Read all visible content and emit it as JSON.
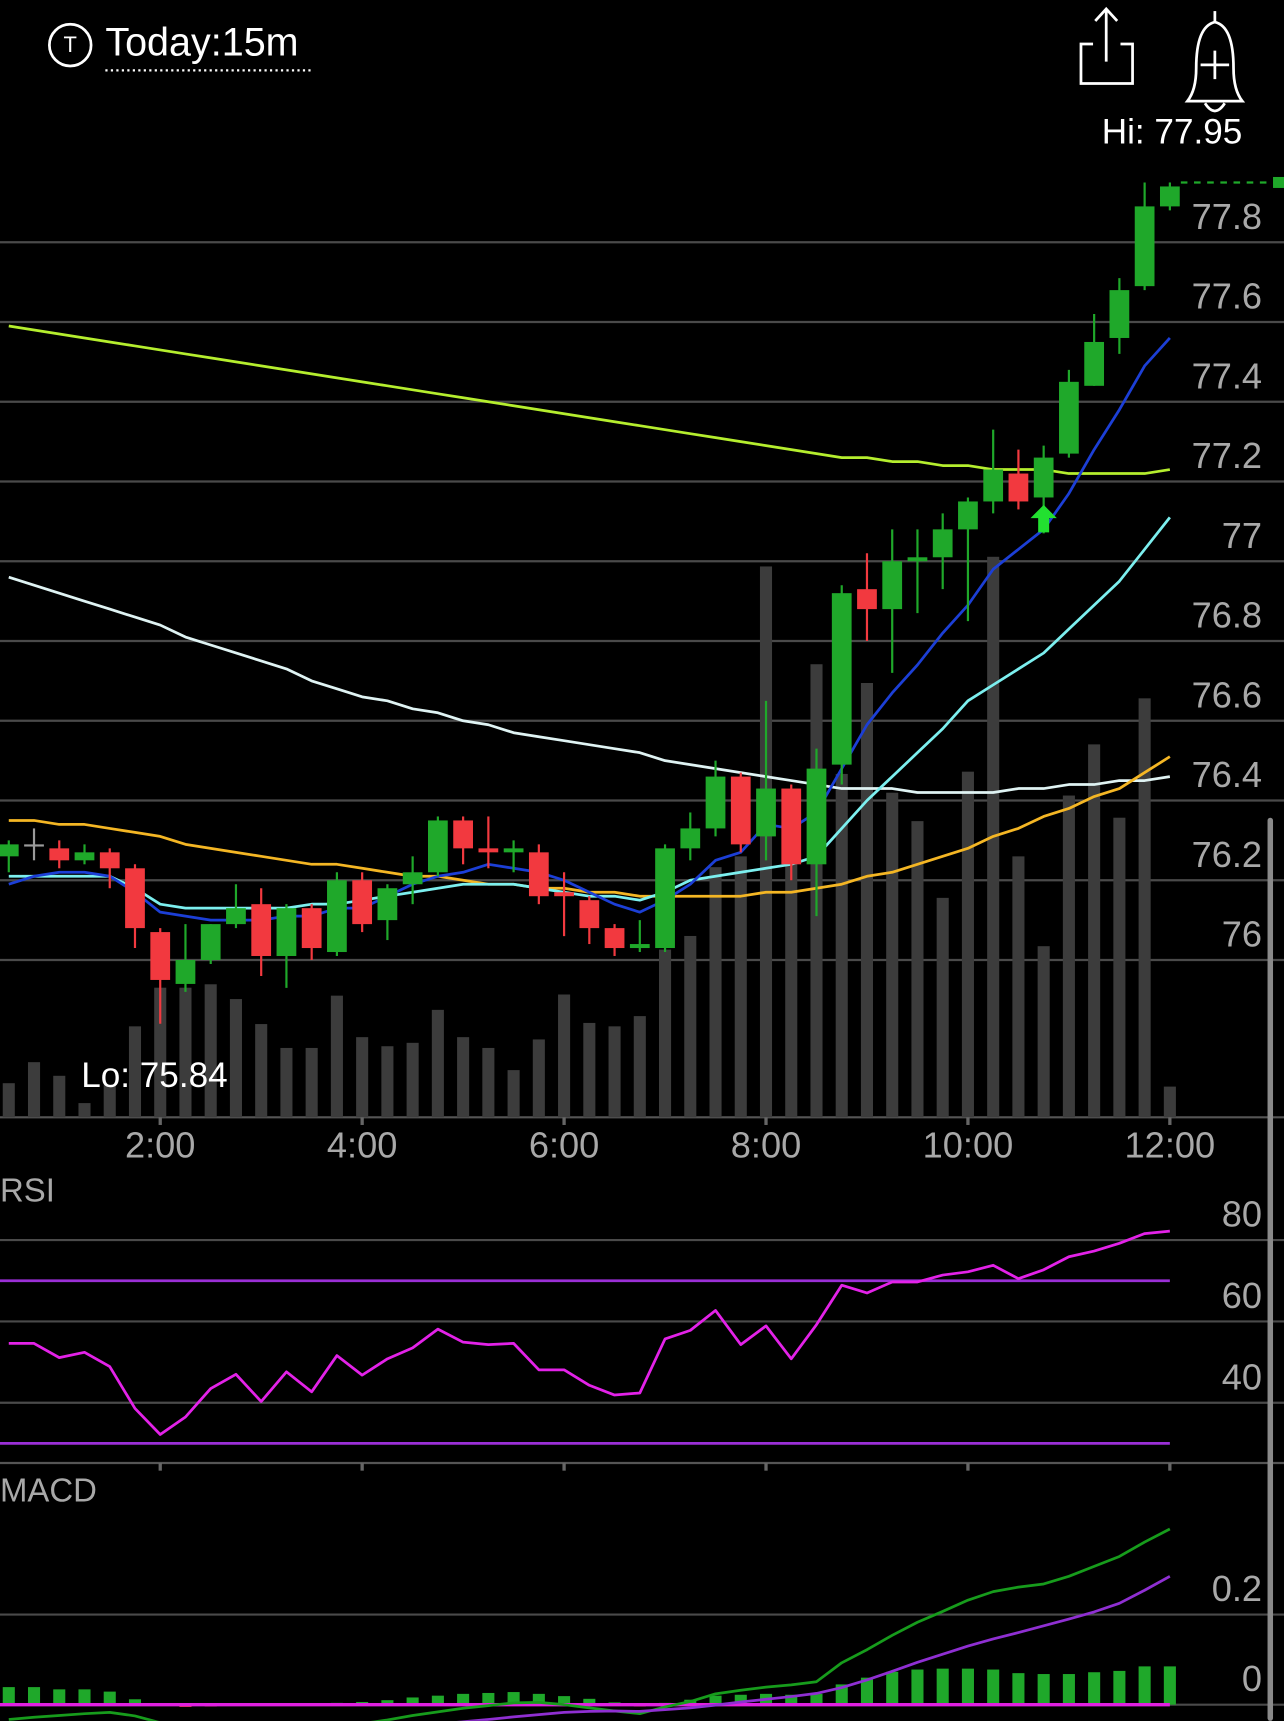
{
  "header": {
    "icon": "T",
    "title": "Today:15m"
  },
  "chart_data": [
    {
      "type": "candlestick",
      "categories": [
        null,
        null,
        null,
        null,
        null,
        null,
        "2:00",
        null,
        null,
        null,
        null,
        null,
        null,
        null,
        "4:00",
        null,
        null,
        null,
        null,
        null,
        null,
        null,
        "6:00",
        null,
        null,
        null,
        null,
        null,
        null,
        null,
        "8:00",
        null,
        null,
        null,
        null,
        null,
        null,
        null,
        "10:00",
        null,
        null,
        null,
        null,
        null,
        null,
        null,
        "12:00"
      ],
      "open": [
        76.26,
        76.29,
        76.28,
        76.25,
        76.27,
        76.23,
        76.07,
        75.94,
        76.0,
        76.09,
        76.14,
        76.01,
        76.13,
        76.02,
        76.2,
        76.1,
        76.19,
        76.22,
        76.35,
        76.28,
        76.27,
        76.27,
        76.17,
        76.15,
        76.08,
        76.03,
        76.03,
        76.28,
        76.33,
        76.46,
        76.31,
        76.43,
        76.24,
        76.49,
        76.93,
        76.88,
        77.0,
        77.01,
        77.08,
        77.15,
        77.22,
        77.16,
        77.27,
        77.44,
        77.56,
        77.69,
        77.89
      ],
      "high": [
        76.3,
        76.33,
        76.3,
        76.29,
        76.28,
        76.24,
        76.08,
        76.09,
        76.09,
        76.19,
        76.18,
        76.14,
        76.14,
        76.22,
        76.22,
        76.19,
        76.26,
        76.36,
        76.36,
        76.36,
        76.3,
        76.29,
        76.22,
        76.16,
        76.09,
        76.1,
        76.29,
        76.37,
        76.5,
        76.47,
        76.65,
        76.44,
        76.53,
        76.94,
        77.02,
        77.08,
        77.08,
        77.12,
        77.16,
        77.33,
        77.28,
        77.29,
        77.48,
        77.62,
        77.71,
        77.95,
        77.95
      ],
      "low": [
        76.22,
        76.25,
        76.23,
        76.24,
        76.18,
        76.03,
        75.84,
        75.92,
        75.99,
        76.08,
        75.96,
        75.93,
        76.0,
        76.01,
        76.07,
        76.05,
        76.14,
        76.21,
        76.24,
        76.23,
        76.22,
        76.14,
        76.06,
        76.04,
        76.01,
        76.02,
        76.02,
        76.25,
        76.31,
        76.27,
        76.25,
        76.2,
        76.11,
        76.44,
        76.8,
        76.72,
        76.87,
        76.93,
        76.85,
        77.12,
        77.13,
        77.07,
        77.26,
        77.44,
        77.52,
        77.68,
        77.88
      ],
      "close": [
        76.29,
        76.29,
        76.25,
        76.27,
        76.23,
        76.08,
        75.95,
        76.0,
        76.09,
        76.13,
        76.01,
        76.13,
        76.03,
        76.2,
        76.09,
        76.18,
        76.22,
        76.35,
        76.28,
        76.27,
        76.28,
        76.16,
        76.16,
        76.08,
        76.03,
        76.04,
        76.28,
        76.33,
        76.46,
        76.29,
        76.43,
        76.24,
        76.48,
        76.92,
        76.88,
        77.0,
        77.01,
        77.08,
        77.15,
        77.23,
        77.15,
        77.26,
        77.45,
        77.55,
        77.68,
        77.89,
        77.94
      ],
      "up_color": "#1fa82a",
      "down_color": "#f2393f",
      "doji_color": "#9a9a9a",
      "volume": [
        60,
        97,
        73,
        25,
        58,
        160,
        228,
        228,
        234,
        208,
        164,
        122,
        122,
        214,
        141,
        125,
        131,
        189,
        141,
        122,
        83,
        137,
        216,
        166,
        160,
        178,
        295,
        319,
        440,
        459,
        969,
        575,
        797,
        604,
        764,
        571,
        521,
        386,
        608,
        986,
        459,
        301,
        566,
        656,
        527,
        737,
        54
      ],
      "volume_color": "#3c3c3c",
      "vlim": [
        0,
        1000
      ],
      "series": [
        {
          "color": "#b5ee2e",
          "values": [
            77.59,
            77.58,
            77.57,
            77.56,
            77.55,
            77.54,
            77.53,
            77.52,
            77.51,
            77.5,
            77.49,
            77.48,
            77.47,
            77.46,
            77.45,
            77.44,
            77.43,
            77.42,
            77.41,
            77.4,
            77.39,
            77.38,
            77.37,
            77.36,
            77.35,
            77.34,
            77.33,
            77.32,
            77.31,
            77.3,
            77.29,
            77.28,
            77.27,
            77.26,
            77.26,
            77.25,
            77.25,
            77.24,
            77.24,
            77.23,
            77.23,
            77.23,
            77.22,
            77.22,
            77.22,
            77.22,
            77.23
          ]
        },
        {
          "color": "#dff3f3",
          "values": [
            76.96,
            76.94,
            76.92,
            76.9,
            76.88,
            76.86,
            76.84,
            76.81,
            76.79,
            76.77,
            76.75,
            76.73,
            76.7,
            76.68,
            76.66,
            76.65,
            76.63,
            76.62,
            76.6,
            76.59,
            76.57,
            76.56,
            76.55,
            76.54,
            76.53,
            76.52,
            76.5,
            76.49,
            76.48,
            76.47,
            76.46,
            76.45,
            76.44,
            76.43,
            76.43,
            76.43,
            76.42,
            76.42,
            76.42,
            76.42,
            76.43,
            76.43,
            76.44,
            76.44,
            76.45,
            76.45,
            76.46
          ]
        },
        {
          "color": "#f4b624",
          "values": [
            76.35,
            76.35,
            76.34,
            76.34,
            76.33,
            76.32,
            76.31,
            76.29,
            76.28,
            76.27,
            76.26,
            76.25,
            76.24,
            76.24,
            76.23,
            76.22,
            76.21,
            76.21,
            76.2,
            76.19,
            76.19,
            76.18,
            76.18,
            76.17,
            76.17,
            76.16,
            76.16,
            76.16,
            76.16,
            76.16,
            76.17,
            76.17,
            76.18,
            76.19,
            76.21,
            76.22,
            76.24,
            76.26,
            76.28,
            76.31,
            76.33,
            76.36,
            76.38,
            76.41,
            76.43,
            76.47,
            76.51
          ]
        },
        {
          "color": "#7cefef",
          "values": [
            76.21,
            76.21,
            76.21,
            76.21,
            76.21,
            76.18,
            76.14,
            76.13,
            76.13,
            76.13,
            76.13,
            76.13,
            76.14,
            76.14,
            76.15,
            76.16,
            76.17,
            76.18,
            76.19,
            76.19,
            76.19,
            76.18,
            76.17,
            76.16,
            76.16,
            76.15,
            76.17,
            76.2,
            76.21,
            76.22,
            76.23,
            76.24,
            76.26,
            76.33,
            76.4,
            76.46,
            76.52,
            76.58,
            76.65,
            76.69,
            76.73,
            76.77,
            76.83,
            76.89,
            76.95,
            77.03,
            77.11
          ]
        },
        {
          "color": "#1c3fd6",
          "values": [
            76.19,
            76.21,
            76.22,
            76.22,
            76.21,
            76.17,
            76.12,
            76.11,
            76.1,
            76.1,
            76.1,
            76.11,
            76.11,
            76.13,
            76.13,
            76.16,
            76.19,
            76.21,
            76.22,
            76.24,
            76.23,
            76.22,
            76.2,
            76.17,
            76.14,
            76.12,
            76.15,
            76.19,
            76.25,
            76.27,
            76.34,
            76.33,
            76.37,
            76.48,
            76.59,
            76.67,
            76.74,
            76.82,
            76.89,
            76.98,
            77.03,
            77.08,
            77.17,
            77.28,
            77.38,
            77.49,
            77.56
          ]
        }
      ],
      "ylim": [
        75.6,
        78.0
      ],
      "yticks": [
        76,
        76.2,
        76.4,
        76.6,
        76.8,
        77,
        77.2,
        77.4,
        77.6,
        77.8
      ],
      "grid": true,
      "hi": 77.95,
      "hi_label": "Hi: 77.95",
      "lo": 75.84,
      "lo_label": "Lo: 75.84"
    },
    {
      "type": "line",
      "title": "RSI",
      "color": "#e322e8",
      "values": [
        54.6,
        54.6,
        51.1,
        52.4,
        48.9,
        38.6,
        32.2,
        36.5,
        43.5,
        47.0,
        40.3,
        47.6,
        42.7,
        51.6,
        46.8,
        50.8,
        53.5,
        58.1,
        54.9,
        54.3,
        54.6,
        48.1,
        48.1,
        44.3,
        41.9,
        42.4,
        55.7,
        57.8,
        62.7,
        54.3,
        58.9,
        50.8,
        59.2,
        68.9,
        67.0,
        69.7,
        69.7,
        71.4,
        72.2,
        73.8,
        70.5,
        72.7,
        75.9,
        77.3,
        79.2,
        81.6,
        82.2
      ],
      "ylim": [
        26,
        94
      ],
      "yticks": [
        40,
        60,
        80
      ],
      "grid": true,
      "reference_lines": [
        30,
        70
      ],
      "reference_color": "#9a2fd6"
    },
    {
      "type": "macd",
      "title": "MACD",
      "series": [
        {
          "color": "#179c1c",
          "values": [
            -0.033,
            -0.028,
            -0.024,
            -0.02,
            -0.017,
            -0.025,
            -0.04,
            -0.05,
            -0.055,
            -0.057,
            -0.058,
            -0.058,
            -0.055,
            -0.05,
            -0.042,
            -0.034,
            -0.024,
            -0.016,
            -0.008,
            -0.002,
            0.004,
            0.005,
            0.0,
            -0.007,
            -0.014,
            -0.02,
            -0.005,
            0.007,
            0.024,
            0.032,
            0.039,
            0.044,
            0.051,
            0.093,
            0.122,
            0.154,
            0.183,
            0.207,
            0.232,
            0.251,
            0.261,
            0.268,
            0.285,
            0.307,
            0.329,
            0.361,
            0.39
          ]
        },
        {
          "color": "#8f2fd2",
          "values": [
            -0.04,
            -0.04,
            -0.04,
            -0.04,
            -0.04,
            -0.041,
            -0.043,
            -0.045,
            -0.047,
            -0.049,
            -0.051,
            -0.052,
            -0.053,
            -0.053,
            -0.052,
            -0.05,
            -0.047,
            -0.043,
            -0.038,
            -0.033,
            -0.027,
            -0.022,
            -0.017,
            -0.015,
            -0.014,
            -0.015,
            -0.011,
            -0.007,
            -0.001,
            0.006,
            0.012,
            0.018,
            0.025,
            0.038,
            0.055,
            0.074,
            0.094,
            0.112,
            0.13,
            0.146,
            0.16,
            0.175,
            0.19,
            0.206,
            0.225,
            0.254,
            0.285
          ]
        }
      ],
      "histogram": [
        0.039,
        0.039,
        0.034,
        0.034,
        0.029,
        0.012,
        -0.002,
        -0.005,
        -0.004,
        -0.003,
        -0.002,
        -0.001,
        0.002,
        0.004,
        0.006,
        0.01,
        0.016,
        0.02,
        0.024,
        0.026,
        0.028,
        0.024,
        0.019,
        0.013,
        0.005,
        -0.004,
        0.004,
        0.011,
        0.02,
        0.022,
        0.024,
        0.022,
        0.024,
        0.045,
        0.06,
        0.073,
        0.078,
        0.08,
        0.08,
        0.078,
        0.07,
        0.068,
        0.068,
        0.072,
        0.075,
        0.085,
        0.085
      ],
      "up_color": "#1fa82a",
      "down_color": "#f2393f",
      "ylim": [
        -0.036,
        0.5
      ],
      "yticks": [
        0,
        0.2
      ],
      "grid": true,
      "zero_color": "#e020e0"
    }
  ]
}
